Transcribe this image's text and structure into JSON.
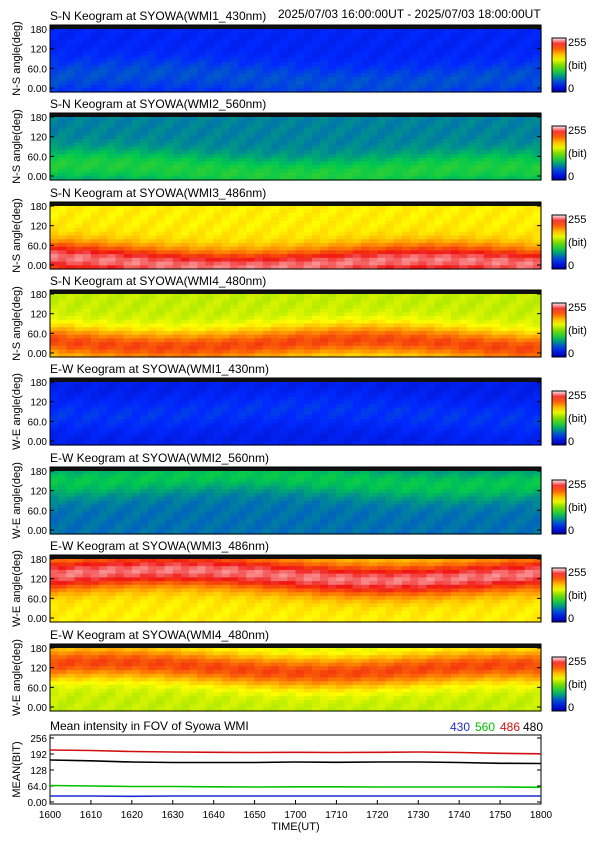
{
  "header": {
    "time_range": "2025/07/03 16:00:00UT - 2025/07/03 18:00:00UT"
  },
  "colorbar": {
    "max_label": "255",
    "unit_label": "(bit)",
    "min_label": "0"
  },
  "keograms": [
    {
      "title": "S-N Keogram at SYOWA(WMI1_430nm)",
      "ylabel": "N-S angle(deg)",
      "yticks": [
        "180",
        "120",
        "60.0",
        "0.00"
      ],
      "palette_base": "blue",
      "peak_angle": 40,
      "intensity": 0.18
    },
    {
      "title": "S-N Keogram at SYOWA(WMI2_560nm)",
      "ylabel": "N-S angle(deg)",
      "yticks": [
        "180",
        "120",
        "60.0",
        "0.00"
      ],
      "palette_base": "green",
      "peak_angle": 30,
      "intensity": 0.35
    },
    {
      "title": "S-N Keogram at SYOWA(WMI3_486nm)",
      "ylabel": "N-S angle(deg)",
      "yticks": [
        "180",
        "120",
        "60.0",
        "0.00"
      ],
      "palette_base": "red",
      "peak_angle": 20,
      "intensity": 0.85
    },
    {
      "title": "S-N Keogram at SYOWA(WMI4_480nm)",
      "ylabel": "N-S angle(deg)",
      "yticks": [
        "180",
        "120",
        "60.0",
        "0.00"
      ],
      "palette_base": "orange",
      "peak_angle": 40,
      "intensity": 0.75
    },
    {
      "title": "E-W Keogram at SYOWA(WMI1_430nm)",
      "ylabel": "W-E angle(deg)",
      "yticks": [
        "180",
        "120",
        "60.0",
        "0.00"
      ],
      "palette_base": "blue",
      "peak_angle": 90,
      "intensity": 0.15
    },
    {
      "title": "E-W Keogram at SYOWA(WMI2_560nm)",
      "ylabel": "W-E angle(deg)",
      "yticks": [
        "180",
        "120",
        "60.0",
        "0.00"
      ],
      "palette_base": "green",
      "peak_angle": 150,
      "intensity": 0.32
    },
    {
      "title": "E-W Keogram at SYOWA(WMI3_486nm)",
      "ylabel": "W-E angle(deg)",
      "yticks": [
        "180",
        "120",
        "60.0",
        "0.00"
      ],
      "palette_base": "red",
      "peak_angle": 130,
      "intensity": 0.85
    },
    {
      "title": "E-W Keogram at SYOWA(WMI4_480nm)",
      "ylabel": "W-E angle(deg)",
      "yticks": [
        "180",
        "120",
        "60.0",
        "0.00"
      ],
      "palette_base": "orange",
      "peak_angle": 120,
      "intensity": 0.75
    }
  ],
  "chart_data": {
    "type": "line",
    "title": "Mean intensity in FOV of Syowa WMI",
    "xlabel": "TIME(UT)",
    "ylabel": "MEAN(BIT)",
    "x_ticks": [
      "1600",
      "1610",
      "1620",
      "1630",
      "1640",
      "1650",
      "1700",
      "1710",
      "1720",
      "1730",
      "1740",
      "1750",
      "1800"
    ],
    "y_ticks": [
      "256",
      "192",
      "128",
      "64.0",
      "0.00"
    ],
    "ylim": [
      0,
      256
    ],
    "x": [
      1600,
      1610,
      1620,
      1630,
      1640,
      1650,
      1700,
      1710,
      1720,
      1730,
      1740,
      1750,
      1800
    ],
    "series": [
      {
        "name": "430",
        "color": "#1f2bd0",
        "values": [
          24,
          24,
          23,
          24,
          24,
          24,
          24,
          24,
          24,
          24,
          24,
          24,
          24
        ]
      },
      {
        "name": "560",
        "color": "#00c000",
        "values": [
          66,
          64,
          62,
          62,
          61,
          60,
          61,
          61,
          60,
          60,
          60,
          60,
          59
        ]
      },
      {
        "name": "486",
        "color": "#d01010",
        "values": [
          208,
          206,
          202,
          200,
          199,
          198,
          199,
          198,
          199,
          200,
          198,
          195,
          193
        ]
      },
      {
        "name": "480",
        "color": "#000000",
        "values": [
          168,
          165,
          160,
          158,
          158,
          158,
          160,
          159,
          160,
          160,
          158,
          155,
          154
        ]
      }
    ]
  }
}
